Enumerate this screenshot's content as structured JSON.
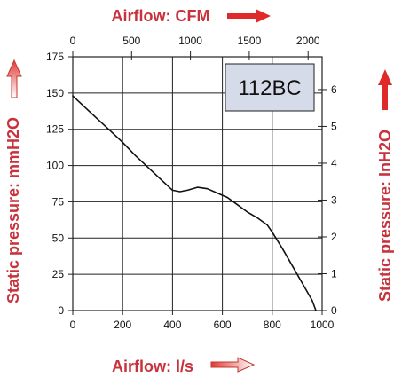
{
  "colors": {
    "title_red": "#c8323c",
    "arrow_gradient_start": "#e23a3a",
    "arrow_gradient_end": "#ffffff",
    "plot_background": "#ffffff",
    "grid": "#222222",
    "curve": "#111111",
    "model_box_fill": "#d6dbea",
    "model_box_border": "#222222"
  },
  "icons": {
    "top_axis_arrow": "arrow-right-icon",
    "bottom_axis_arrow": "arrow-right-icon",
    "left_axis_arrow": "arrow-up-icon",
    "right_axis_arrow": "arrow-up-icon"
  },
  "chart_data": {
    "type": "line",
    "model_label": "112BC",
    "grid": true,
    "axes": {
      "x_bottom": {
        "label": "Airflow: l/s",
        "range": [
          0,
          1000
        ],
        "ticks": [
          0,
          200,
          400,
          600,
          800,
          1000
        ],
        "tick_labels": [
          "0",
          "200",
          "400",
          "600",
          "800",
          "1000"
        ]
      },
      "x_top": {
        "label": "Airflow: CFM",
        "range": [
          0,
          2119
        ],
        "ticks": [
          0,
          500,
          1000,
          1500,
          2000
        ],
        "tick_labels": [
          "0",
          "500",
          "1000",
          "1500",
          "2000"
        ]
      },
      "y_left": {
        "label": "Static pressure: mmH2O",
        "range": [
          0,
          175
        ],
        "ticks": [
          0,
          25,
          50,
          75,
          100,
          125,
          150,
          175
        ],
        "tick_labels": [
          "0",
          "25",
          "50",
          "75",
          "100",
          "125",
          "150",
          "175"
        ]
      },
      "y_right": {
        "label": "Static pressure: InH2O",
        "range": [
          0,
          6.89
        ],
        "ticks": [
          0,
          1,
          2,
          3,
          4,
          5,
          6
        ],
        "tick_labels": [
          "0",
          "1",
          "2",
          "3",
          "4",
          "5",
          "6"
        ]
      }
    },
    "series": [
      {
        "x": [
          0,
          50,
          100,
          150,
          200,
          250,
          300,
          350,
          400,
          430,
          460,
          500,
          540,
          580,
          620,
          660,
          700,
          740,
          780,
          800,
          840,
          880,
          920,
          960,
          975
        ],
        "y": [
          148,
          140,
          132,
          124,
          116,
          107,
          99,
          91,
          83,
          82,
          83,
          85,
          84,
          81,
          78,
          73,
          68,
          64,
          59,
          54,
          43,
          31,
          19,
          7,
          0
        ]
      }
    ]
  }
}
